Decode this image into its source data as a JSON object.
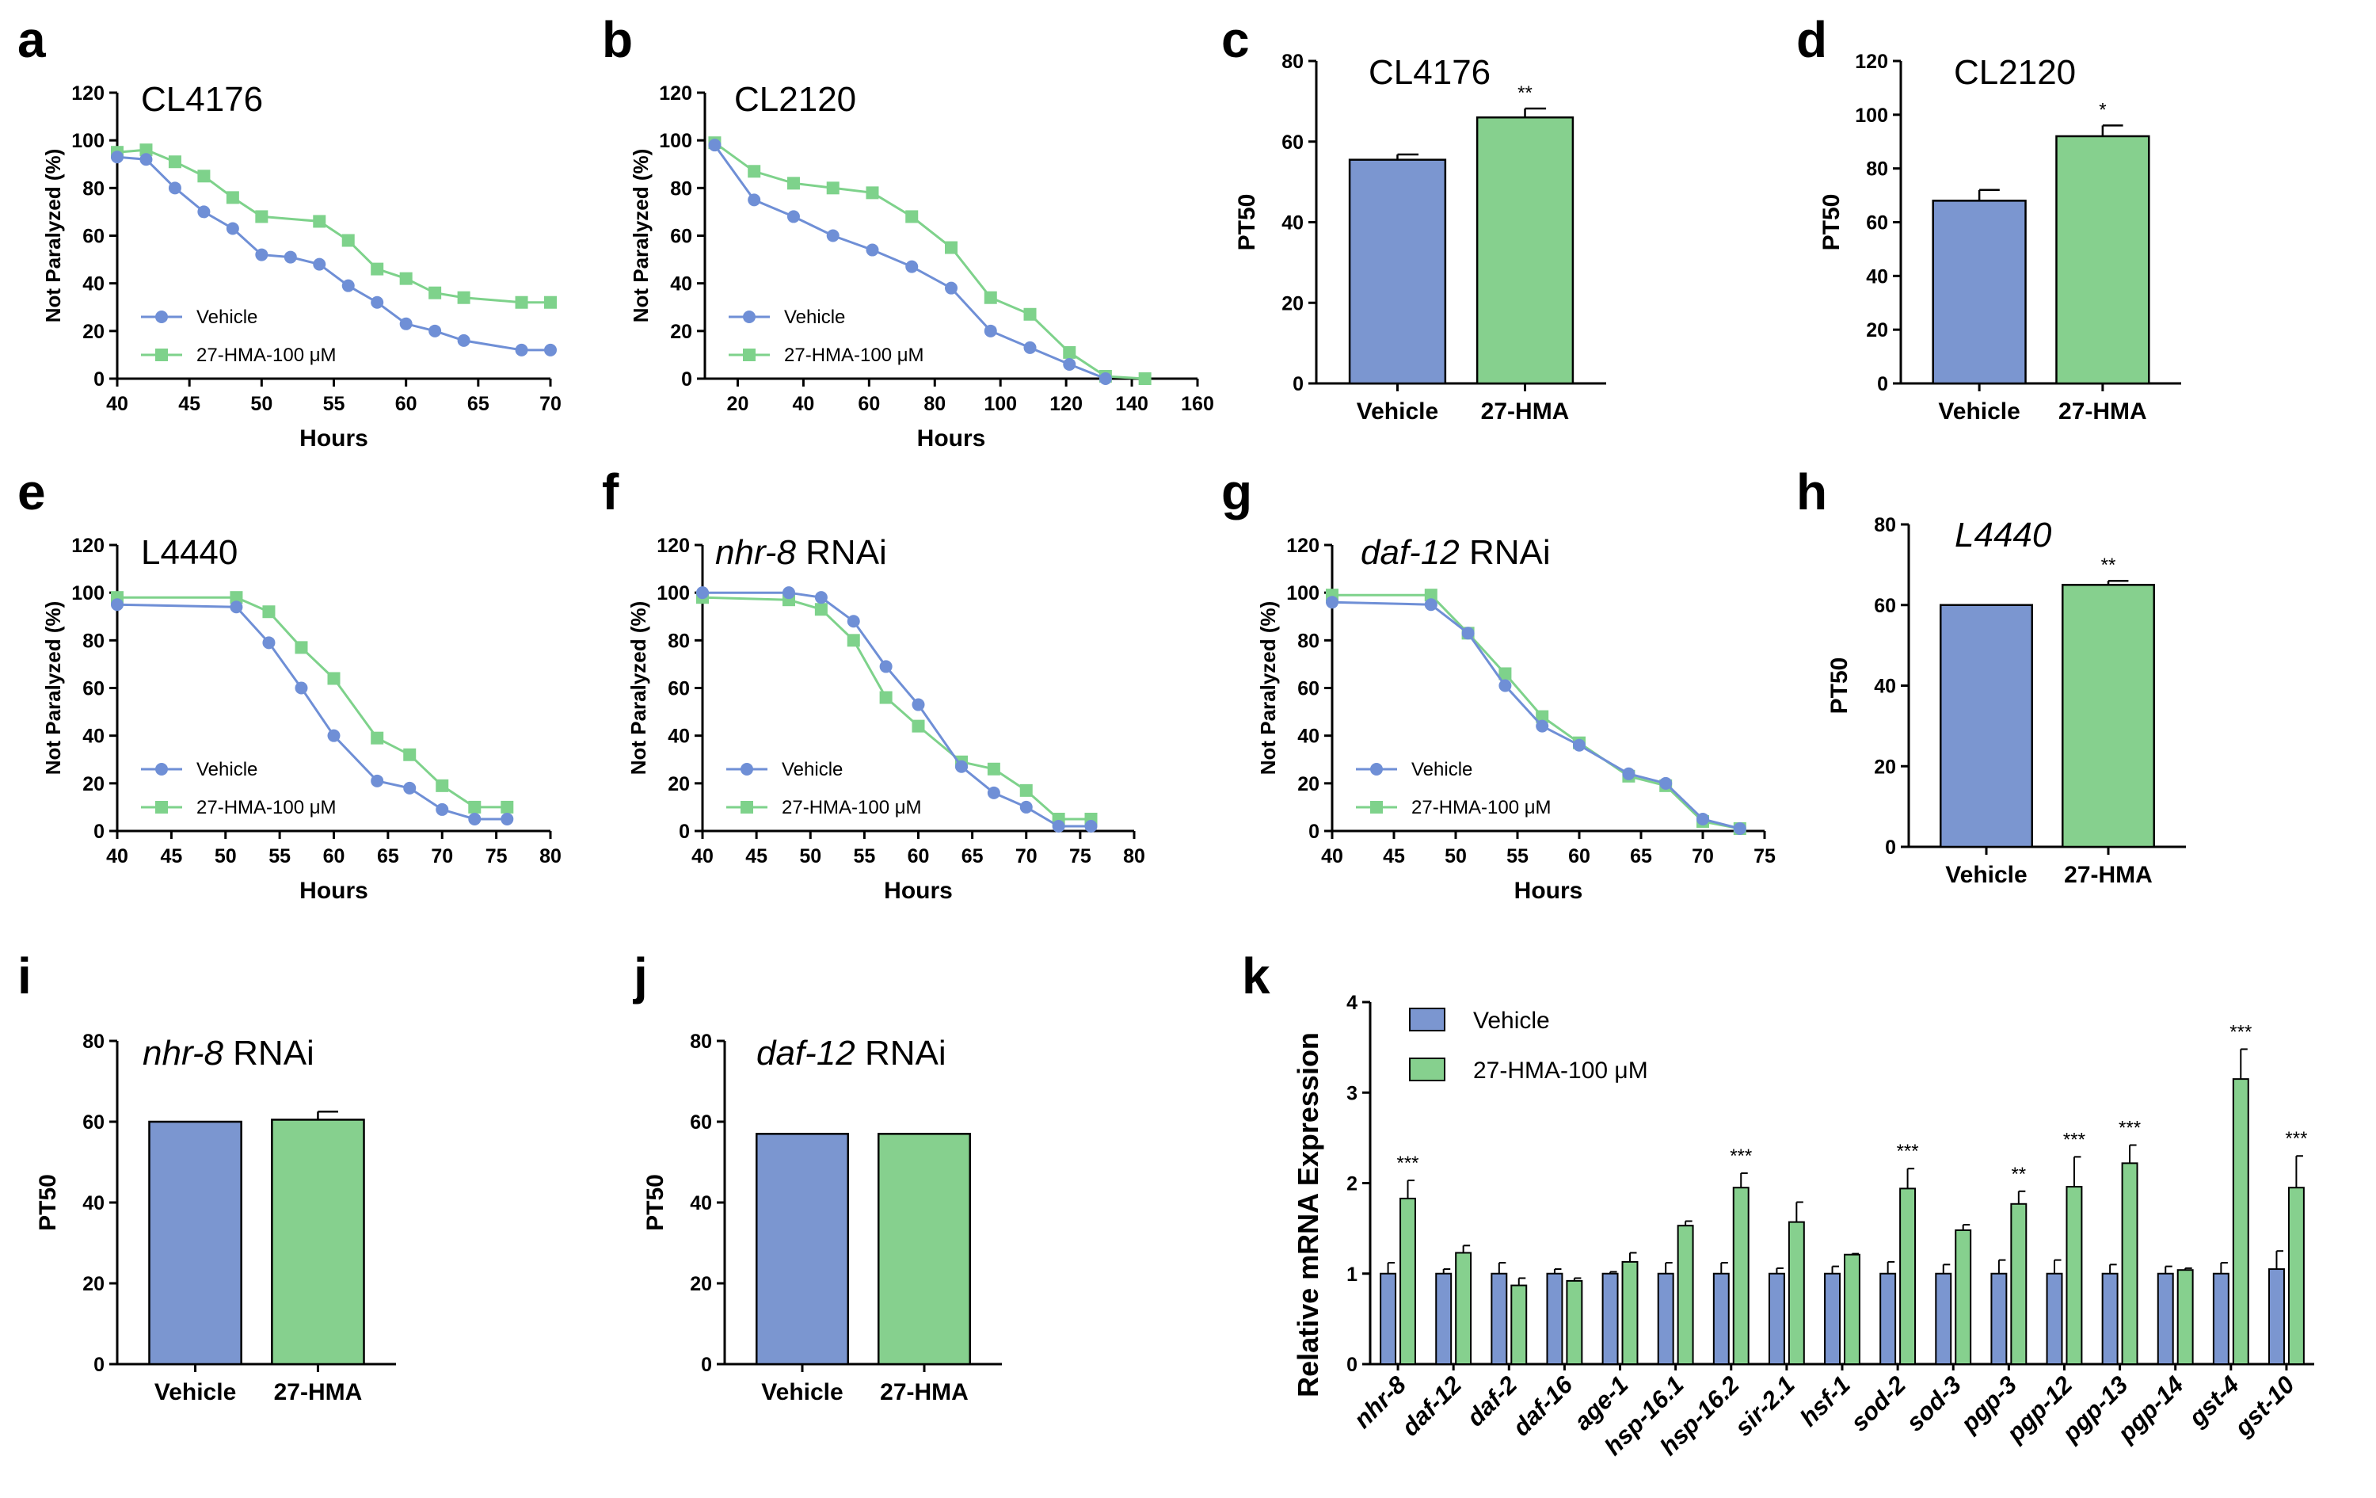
{
  "colors": {
    "vehicle": "#7b96d0",
    "hma": "#86d08e",
    "vehicle_line": "#6f8fd6",
    "hma_line": "#7ed28b"
  },
  "panels": [
    {
      "id": "a",
      "letter": "a"
    },
    {
      "id": "b",
      "letter": "b"
    },
    {
      "id": "c",
      "letter": "c"
    },
    {
      "id": "d",
      "letter": "d"
    },
    {
      "id": "e",
      "letter": "e"
    },
    {
      "id": "f",
      "letter": "f"
    },
    {
      "id": "g",
      "letter": "g"
    },
    {
      "id": "h",
      "letter": "h"
    },
    {
      "id": "i",
      "letter": "i"
    },
    {
      "id": "j",
      "letter": "j"
    },
    {
      "id": "k",
      "letter": "k"
    }
  ],
  "chart_data": [
    {
      "panel": "a",
      "type": "line",
      "title": "CL4176",
      "title_italic": "",
      "title_rest": "",
      "xlabel": "Hours",
      "ylabel": "Not Paralyzed (%)",
      "xlim": [
        40,
        70
      ],
      "ylim": [
        0,
        120
      ],
      "xticks": [
        40,
        45,
        50,
        55,
        60,
        65,
        70
      ],
      "yticks": [
        0,
        20,
        40,
        60,
        80,
        100,
        120
      ],
      "series": [
        {
          "name": "Vehicle",
          "marker": "circle",
          "x": [
            40,
            42,
            44,
            46,
            48,
            50,
            52,
            54,
            56,
            58,
            60,
            62,
            64,
            68,
            70
          ],
          "y": [
            93,
            92,
            80,
            70,
            63,
            52,
            51,
            48,
            39,
            32,
            23,
            20,
            16,
            12,
            12
          ]
        },
        {
          "name": "27-HMA-100 μM",
          "marker": "square",
          "x": [
            40,
            42,
            44,
            46,
            48,
            50,
            54,
            56,
            58,
            60,
            62,
            64,
            68,
            70
          ],
          "y": [
            95,
            96,
            91,
            85,
            76,
            68,
            66,
            58,
            46,
            42,
            36,
            34,
            32,
            32
          ]
        }
      ]
    },
    {
      "panel": "b",
      "type": "line",
      "title": "CL2120",
      "title_italic": "",
      "title_rest": "",
      "xlabel": "Hours",
      "ylabel": "Not Paralyzed (%)",
      "xlim": [
        10,
        160
      ],
      "ylim": [
        0,
        120
      ],
      "xticks": [
        20,
        40,
        60,
        80,
        100,
        120,
        140,
        160
      ],
      "yticks": [
        0,
        20,
        40,
        60,
        80,
        100,
        120
      ],
      "series": [
        {
          "name": "Vehicle",
          "marker": "circle",
          "x": [
            13,
            25,
            37,
            49,
            61,
            73,
            85,
            97,
            109,
            121,
            132
          ],
          "y": [
            98,
            75,
            68,
            60,
            54,
            47,
            38,
            20,
            13,
            6,
            0
          ]
        },
        {
          "name": "27-HMA-100 μM",
          "marker": "square",
          "x": [
            13,
            25,
            37,
            49,
            61,
            73,
            85,
            97,
            109,
            121,
            132,
            144
          ],
          "y": [
            99,
            87,
            82,
            80,
            78,
            68,
            55,
            34,
            27,
            11,
            1,
            0
          ]
        }
      ]
    },
    {
      "panel": "c",
      "type": "bar",
      "title": "CL4176",
      "title_italic": "",
      "title_rest": "",
      "xlabel": "",
      "ylabel": "PT50",
      "ylim": [
        0,
        80
      ],
      "yticks": [
        0,
        20,
        40,
        60,
        80
      ],
      "categories": [
        "Vehicle",
        "27-HMA"
      ],
      "values": [
        55.5,
        66
      ],
      "errors": [
        1.3,
        2.2
      ],
      "sig": [
        "",
        "**"
      ]
    },
    {
      "panel": "d",
      "type": "bar",
      "title": "CL2120",
      "title_italic": "",
      "title_rest": "",
      "xlabel": "",
      "ylabel": "PT50",
      "ylim": [
        0,
        120
      ],
      "yticks": [
        0,
        20,
        40,
        60,
        80,
        100,
        120
      ],
      "categories": [
        "Vehicle",
        "27-HMA"
      ],
      "values": [
        68,
        92
      ],
      "errors": [
        4,
        4
      ],
      "sig": [
        "",
        "*"
      ]
    },
    {
      "panel": "e",
      "type": "line",
      "title": "L4440",
      "title_italic": "",
      "title_rest": "",
      "xlabel": "Hours",
      "ylabel": "Not Paralyzed (%)",
      "xlim": [
        40,
        80
      ],
      "ylim": [
        0,
        120
      ],
      "xticks": [
        40,
        45,
        50,
        55,
        60,
        65,
        70,
        75,
        80
      ],
      "yticks": [
        0,
        20,
        40,
        60,
        80,
        100,
        120
      ],
      "series": [
        {
          "name": "Vehicle",
          "marker": "circle",
          "x": [
            40,
            51,
            54,
            57,
            60,
            64,
            67,
            70,
            73,
            76
          ],
          "y": [
            95,
            94,
            79,
            60,
            40,
            21,
            18,
            9,
            5,
            5
          ]
        },
        {
          "name": "27-HMA-100 μM",
          "marker": "square",
          "x": [
            40,
            51,
            54,
            57,
            60,
            64,
            67,
            70,
            73,
            76
          ],
          "y": [
            98,
            98,
            92,
            77,
            64,
            39,
            32,
            19,
            10,
            10
          ]
        }
      ]
    },
    {
      "panel": "f",
      "type": "line",
      "title": "",
      "title_italic": "nhr-8",
      "title_rest": " RNAi",
      "xlabel": "Hours",
      "ylabel": "Not Paralyzed (%)",
      "xlim": [
        40,
        80
      ],
      "ylim": [
        0,
        120
      ],
      "xticks": [
        40,
        45,
        50,
        55,
        60,
        65,
        70,
        75,
        80
      ],
      "yticks": [
        0,
        20,
        40,
        60,
        80,
        100,
        120
      ],
      "series": [
        {
          "name": "Vehicle",
          "marker": "circle",
          "x": [
            40,
            48,
            51,
            54,
            57,
            60,
            64,
            67,
            70,
            73,
            76
          ],
          "y": [
            100,
            100,
            98,
            88,
            69,
            53,
            27,
            16,
            10,
            2,
            2
          ]
        },
        {
          "name": "27-HMA-100 μM",
          "marker": "square",
          "x": [
            40,
            48,
            51,
            54,
            57,
            60,
            64,
            67,
            70,
            73,
            76
          ],
          "y": [
            98,
            97,
            93,
            80,
            56,
            44,
            29,
            26,
            17,
            5,
            5
          ]
        }
      ]
    },
    {
      "panel": "g",
      "type": "line",
      "title": "",
      "title_italic": "daf-12",
      "title_rest": " RNAi",
      "xlabel": "Hours",
      "ylabel": "Not Paralyzed (%)",
      "xlim": [
        40,
        75
      ],
      "ylim": [
        0,
        120
      ],
      "xticks": [
        40,
        45,
        50,
        55,
        60,
        65,
        70,
        75
      ],
      "yticks": [
        0,
        20,
        40,
        60,
        80,
        100,
        120
      ],
      "series": [
        {
          "name": "Vehicle",
          "marker": "circle",
          "x": [
            40,
            48,
            51,
            54,
            57,
            60,
            64,
            67,
            70,
            73
          ],
          "y": [
            96,
            95,
            83,
            61,
            44,
            36,
            24,
            20,
            5,
            1
          ]
        },
        {
          "name": "27-HMA-100 μM",
          "marker": "square",
          "x": [
            40,
            48,
            51,
            54,
            57,
            60,
            64,
            67,
            70,
            73
          ],
          "y": [
            99,
            99,
            83,
            66,
            48,
            37,
            23,
            19,
            4,
            1
          ]
        }
      ]
    },
    {
      "panel": "h",
      "type": "bar",
      "title": "",
      "title_italic": "L4440",
      "title_rest": "",
      "xlabel": "",
      "ylabel": "PT50",
      "ylim": [
        0,
        80
      ],
      "yticks": [
        0,
        20,
        40,
        60,
        80
      ],
      "categories": [
        "Vehicle",
        "27-HMA"
      ],
      "values": [
        60,
        65
      ],
      "errors": [
        0,
        1
      ],
      "sig": [
        "",
        "**"
      ]
    },
    {
      "panel": "i",
      "type": "bar",
      "title": "",
      "title_italic": "nhr-8",
      "title_rest": " RNAi",
      "xlabel": "",
      "ylabel": "PT50",
      "ylim": [
        0,
        80
      ],
      "yticks": [
        0,
        20,
        40,
        60,
        80
      ],
      "categories": [
        "Vehicle",
        "27-HMA"
      ],
      "values": [
        60,
        60.5
      ],
      "errors": [
        0,
        2
      ],
      "sig": [
        "",
        ""
      ]
    },
    {
      "panel": "j",
      "type": "bar",
      "title": "",
      "title_italic": "daf-12",
      "title_rest": " RNAi",
      "xlabel": "",
      "ylabel": "PT50",
      "ylim": [
        0,
        80
      ],
      "yticks": [
        0,
        20,
        40,
        60,
        80
      ],
      "categories": [
        "Vehicle",
        "27-HMA"
      ],
      "values": [
        57,
        57
      ],
      "errors": [
        0,
        0
      ],
      "sig": [
        "",
        ""
      ]
    },
    {
      "panel": "k",
      "type": "bar",
      "title": "",
      "xlabel": "",
      "ylabel": "Relative  mRNA Expression",
      "ylim": [
        0,
        4
      ],
      "yticks": [
        0,
        1,
        2,
        3,
        4
      ],
      "categories": [
        "nhr-8",
        "daf-12",
        "daf-2",
        "daf-16",
        "age-1",
        "hsp-16.1",
        "hsp-16.2",
        "sir-2.1",
        "hsf-1",
        "sod-2",
        "sod-3",
        "pgp-3",
        "pgp-12",
        "pgp-13",
        "pgp-14",
        "gst-4",
        "gst-10"
      ],
      "series": [
        {
          "name": "Vehicle",
          "values": [
            1.0,
            1.0,
            1.0,
            1.0,
            1.0,
            1.0,
            1.0,
            1.0,
            1.0,
            1.0,
            1.0,
            1.0,
            1.0,
            1.0,
            1.0,
            1.0,
            1.05
          ],
          "errors": [
            0.12,
            0.05,
            0.12,
            0.05,
            0.02,
            0.12,
            0.12,
            0.06,
            0.08,
            0.13,
            0.1,
            0.15,
            0.15,
            0.1,
            0.08,
            0.12,
            0.2
          ]
        },
        {
          "name": "27-HMA-100 μM",
          "values": [
            1.83,
            1.23,
            0.87,
            0.92,
            1.13,
            1.53,
            1.95,
            1.57,
            1.21,
            1.94,
            1.48,
            1.77,
            1.96,
            2.22,
            1.04,
            3.15,
            1.95
          ],
          "errors": [
            0.2,
            0.08,
            0.08,
            0.03,
            0.1,
            0.05,
            0.16,
            0.22,
            0.01,
            0.22,
            0.06,
            0.14,
            0.33,
            0.2,
            0.02,
            0.33,
            0.35
          ]
        }
      ],
      "sig": [
        "***",
        "",
        "",
        "",
        "",
        "",
        "***",
        "",
        "",
        "***",
        "",
        "**",
        "***",
        "***",
        "",
        "***",
        "***"
      ]
    }
  ]
}
